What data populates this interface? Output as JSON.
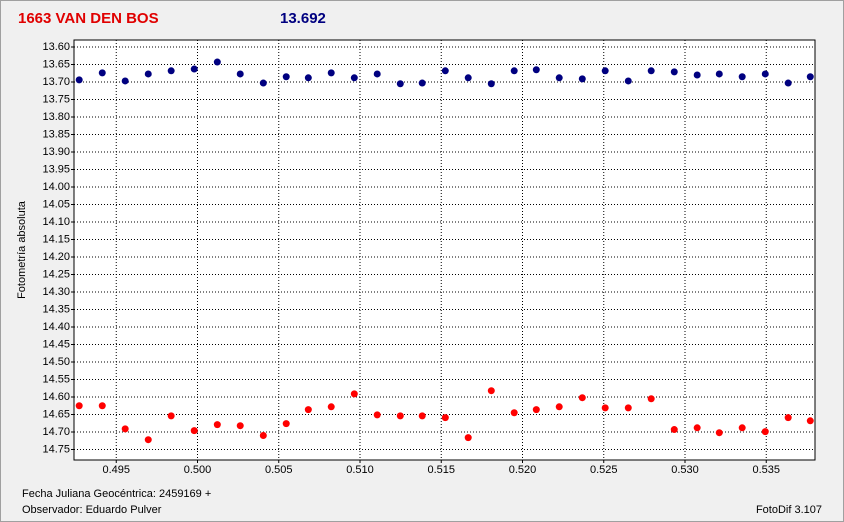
{
  "chart_data": {
    "type": "scatter",
    "title": "1663 VAN DEN BOS",
    "subtitle": "13.692",
    "y_label": "Fotometría absoluta",
    "footer": {
      "date": "Fecha Juliana Geocéntrica: 2459169 +",
      "observer": "Observador: Eduardo Pulver",
      "software": "FotoDif 3.107"
    },
    "y_inverted": true,
    "grid": true,
    "xlim": [
      0.4924,
      0.538
    ],
    "ylim": [
      13.58,
      14.78
    ],
    "xticks": [
      0.495,
      {
        "value": 0.5,
        "label": "0.500"
      },
      0.505,
      {
        "value": 0.51,
        "label": "0.510"
      },
      0.515,
      {
        "value": 0.52,
        "label": "0.520"
      },
      0.525,
      {
        "value": 0.53,
        "label": "0.530"
      },
      0.535
    ],
    "yticks": [
      {
        "value": 13.6,
        "label": "13.60"
      },
      13.65,
      {
        "value": 13.7,
        "label": "13.70"
      },
      13.75,
      {
        "value": 13.8,
        "label": "13.80"
      },
      13.85,
      {
        "value": 13.9,
        "label": "13.90"
      },
      13.95,
      {
        "value": 14.0,
        "label": "14.00"
      },
      14.05,
      {
        "value": 14.1,
        "label": "14.10"
      },
      14.15,
      {
        "value": 14.2,
        "label": "14.20"
      },
      14.25,
      {
        "value": 14.3,
        "label": "14.30"
      },
      14.35,
      {
        "value": 14.4,
        "label": "14.40"
      },
      14.45,
      {
        "value": 14.5,
        "label": "14.50"
      },
      14.55,
      {
        "value": 14.6,
        "label": "14.60"
      },
      14.65,
      {
        "value": 14.7,
        "label": "14.70"
      },
      14.75
    ],
    "x": [
      0.49272,
      0.49414,
      0.49555,
      0.49697,
      0.49838,
      0.4998,
      0.50122,
      0.50263,
      0.50405,
      0.50546,
      0.50682,
      0.50823,
      0.50965,
      0.51106,
      0.51248,
      0.51383,
      0.51525,
      0.51666,
      0.51808,
      0.51949,
      0.52085,
      0.52226,
      0.52368,
      0.52509,
      0.52651,
      0.52792,
      0.52934,
      0.53075,
      0.53211,
      0.53352,
      0.53494,
      0.53635,
      0.53771
    ],
    "series": [
      {
        "color": "#000080",
        "values": [
          13.694,
          13.674,
          13.697,
          13.677,
          13.668,
          13.663,
          13.643,
          13.677,
          13.703,
          13.685,
          13.688,
          13.674,
          13.688,
          13.677,
          13.705,
          13.703,
          13.668,
          13.688,
          13.705,
          13.668,
          13.665,
          13.688,
          13.691,
          13.668,
          13.697,
          13.668,
          13.671,
          13.68,
          13.677,
          13.685,
          13.677,
          13.703,
          13.685
        ]
      },
      {
        "color": "#ff0000",
        "values": [
          14.625,
          14.625,
          14.691,
          14.722,
          14.654,
          14.696,
          14.679,
          14.682,
          14.71,
          14.676,
          14.636,
          14.628,
          14.591,
          14.651,
          14.654,
          14.654,
          14.659,
          14.716,
          14.582,
          14.645,
          14.636,
          14.628,
          14.602,
          14.631,
          14.631,
          14.605,
          14.693,
          14.688,
          14.702,
          14.688,
          14.699,
          14.659,
          14.668
        ]
      }
    ]
  }
}
